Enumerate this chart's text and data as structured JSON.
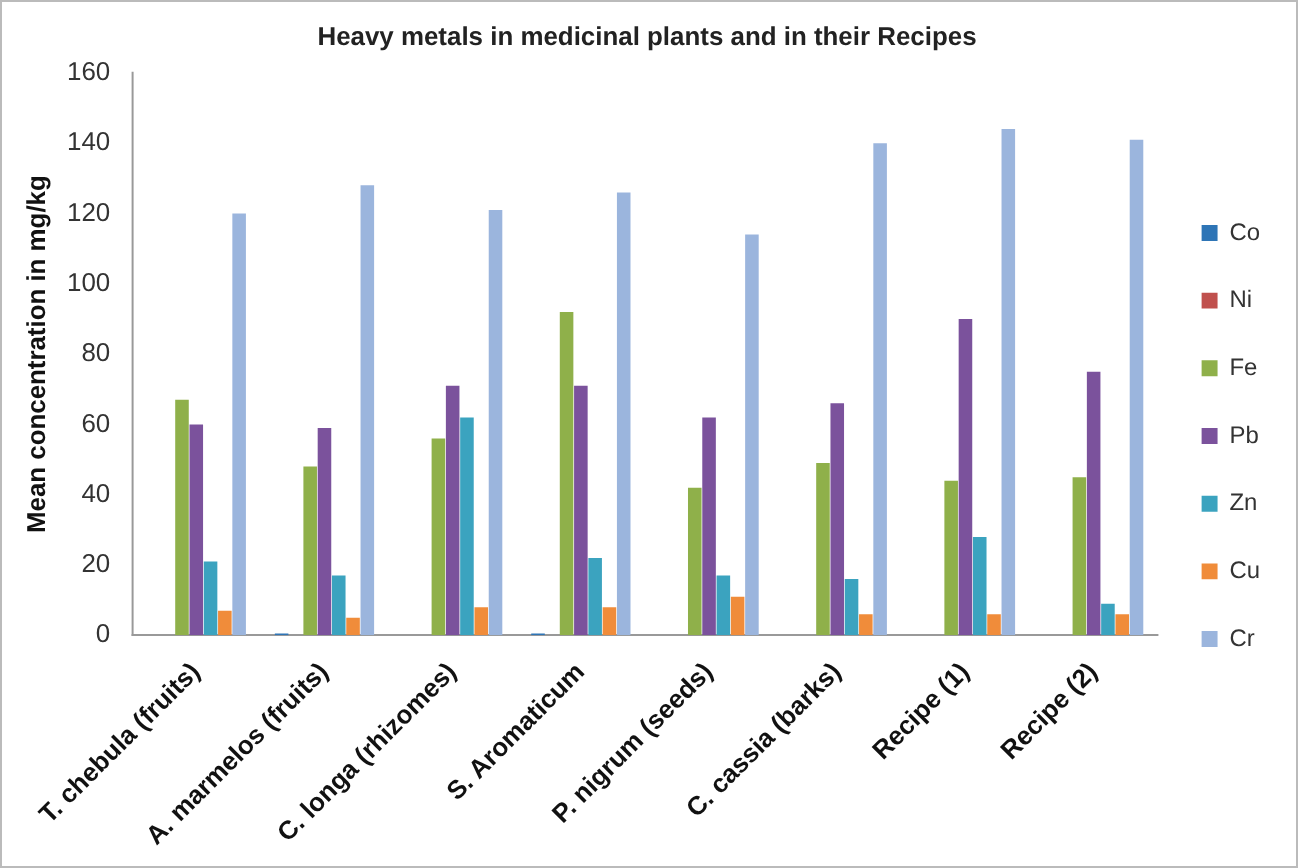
{
  "chart_data": {
    "type": "bar",
    "title": "Heavy metals in medicinal plants and in their Recipes",
    "ylabel": "Mean concentration in mg/kg",
    "categories": [
      "T. chebula (fruits)",
      "A. marmelos (fruits)",
      "C. longa (rhizomes)",
      "S. Aromaticum",
      "P. nigrum (seeds)",
      "C. cassia (barks)",
      "Recipe (1)",
      "Recipe (2)"
    ],
    "series": [
      {
        "name": "Co",
        "color": "#2e75b6",
        "values": [
          0,
          0.5,
          0,
          0.5,
          0,
          0,
          0,
          0
        ]
      },
      {
        "name": "Ni",
        "color": "#c0504d",
        "values": [
          0,
          0,
          0,
          0,
          0,
          0,
          0,
          0
        ]
      },
      {
        "name": "Fe",
        "color": "#8fb04a",
        "values": [
          67,
          48,
          56,
          92,
          42,
          49,
          44,
          45
        ]
      },
      {
        "name": "Pb",
        "color": "#7b529c",
        "values": [
          60,
          59,
          71,
          71,
          62,
          66,
          90,
          75
        ]
      },
      {
        "name": "Zn",
        "color": "#3ba3bf",
        "values": [
          21,
          17,
          62,
          22,
          17,
          16,
          28,
          9
        ]
      },
      {
        "name": "Cu",
        "color": "#f08c3a",
        "values": [
          7,
          5,
          8,
          8,
          11,
          6,
          6,
          6
        ]
      },
      {
        "name": "Cr",
        "color": "#9bb5dd",
        "values": [
          120,
          128,
          121,
          126,
          114,
          140,
          144,
          141
        ]
      }
    ],
    "ylim": [
      0,
      160
    ],
    "yticks": [
      0,
      20,
      40,
      60,
      80,
      100,
      120,
      140,
      160
    ],
    "grid": false,
    "legend": "right"
  }
}
